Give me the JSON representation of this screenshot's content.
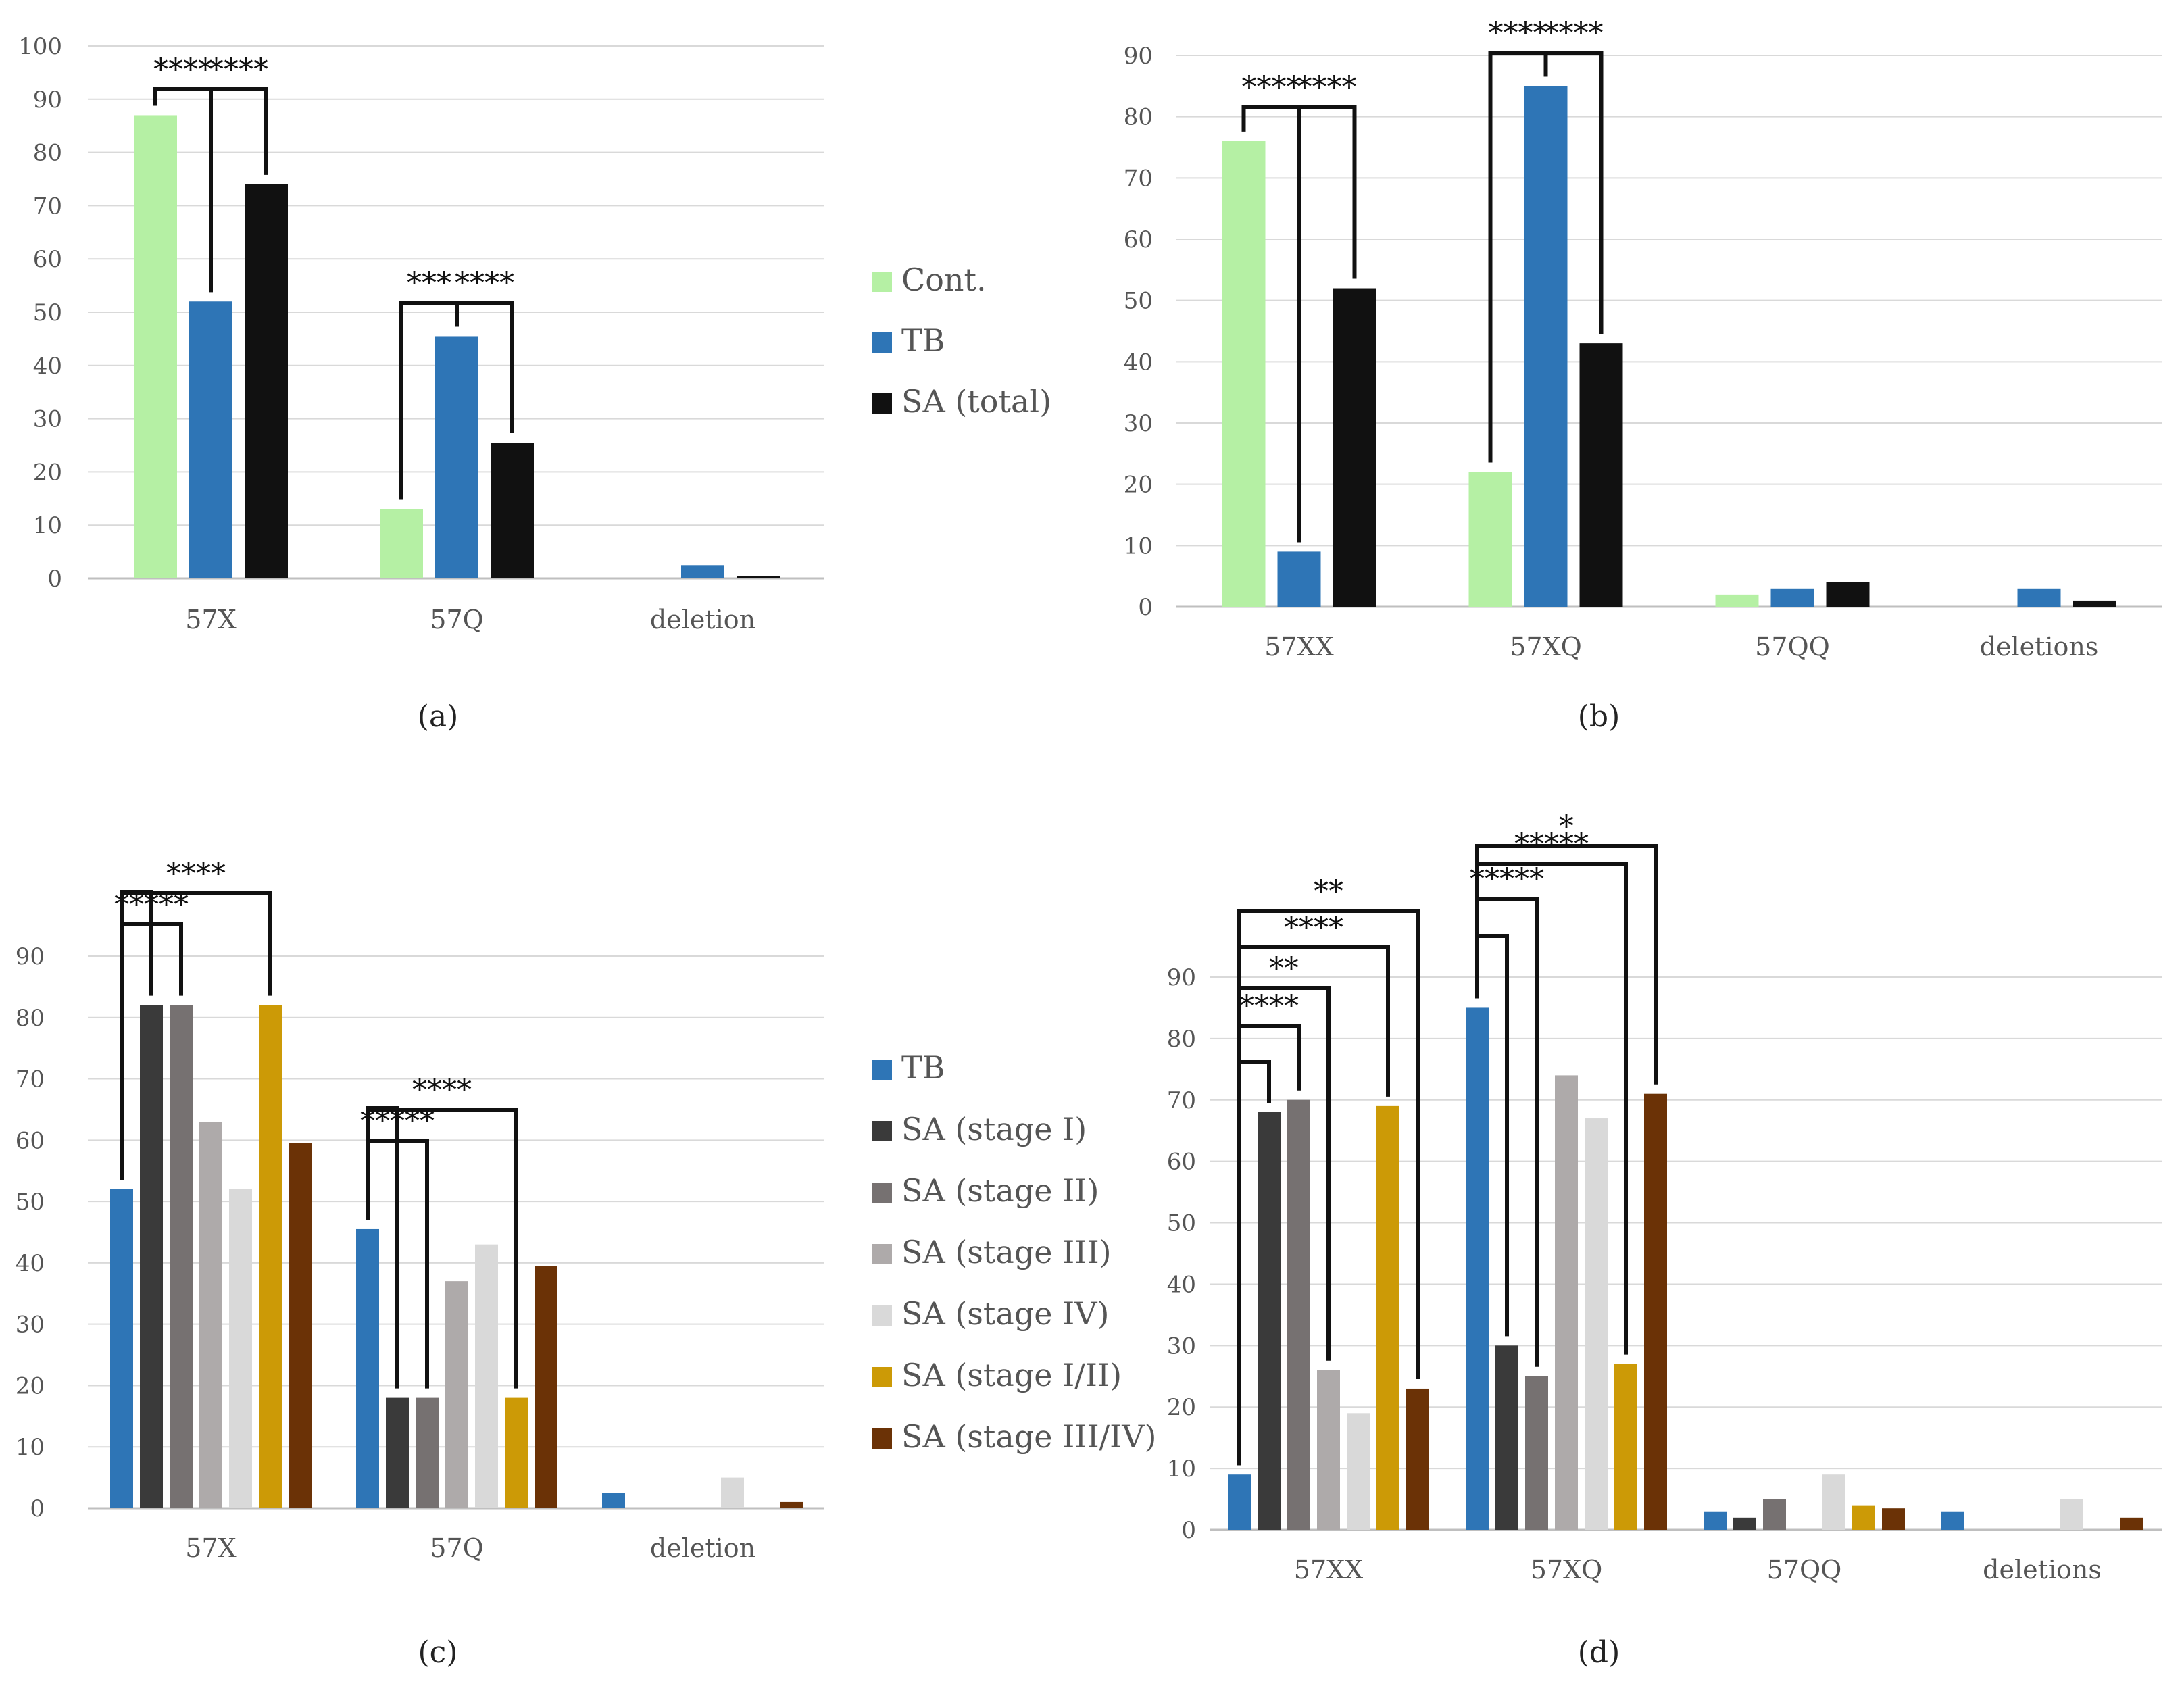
{
  "chart_data": [
    {
      "panel": "(a)",
      "type": "bar",
      "categories": [
        "57X",
        "57Q",
        "deletion"
      ],
      "ylim": [
        0,
        100
      ],
      "yticks": [
        0,
        10,
        20,
        30,
        40,
        50,
        60,
        70,
        80,
        90,
        100
      ],
      "series": [
        {
          "name": "Cont.",
          "color": "#b5f0a4",
          "values": [
            87,
            13,
            0
          ]
        },
        {
          "name": "TB",
          "color": "#2e75b6",
          "values": [
            52,
            45.5,
            2.5
          ]
        },
        {
          "name": "SA (total)",
          "color": "#111111",
          "values": [
            74,
            25.5,
            0.5
          ]
        }
      ],
      "significance": [
        {
          "category": 0,
          "from": 0,
          "to": 1,
          "label": "****"
        },
        {
          "category": 0,
          "from": 1,
          "to": 2,
          "label": "****"
        },
        {
          "category": 1,
          "from": 0,
          "to": 1,
          "label": "***"
        },
        {
          "category": 1,
          "from": 1,
          "to": 2,
          "label": "****"
        }
      ]
    },
    {
      "panel": "(b)",
      "type": "bar",
      "categories": [
        "57XX",
        "57XQ",
        "57QQ",
        "deletions"
      ],
      "ylim": [
        0,
        90
      ],
      "yticks": [
        0,
        10,
        20,
        30,
        40,
        50,
        60,
        70,
        80,
        90
      ],
      "series": [
        {
          "name": "Cont.",
          "color": "#b5f0a4",
          "values": [
            76,
            22,
            2,
            0
          ]
        },
        {
          "name": "TB",
          "color": "#2e75b6",
          "values": [
            9,
            85,
            3,
            3
          ]
        },
        {
          "name": "SA (total)",
          "color": "#111111",
          "values": [
            52,
            43,
            4,
            1
          ]
        }
      ],
      "significance": [
        {
          "category": 0,
          "from": 0,
          "to": 1,
          "label": "****"
        },
        {
          "category": 0,
          "from": 1,
          "to": 2,
          "label": "****"
        },
        {
          "category": 1,
          "from": 0,
          "to": 1,
          "label": "****"
        },
        {
          "category": 1,
          "from": 1,
          "to": 2,
          "label": "****"
        }
      ]
    },
    {
      "panel": "(c)",
      "type": "bar",
      "categories": [
        "57X",
        "57Q",
        "deletion"
      ],
      "ylim": [
        0,
        90
      ],
      "yticks": [
        0,
        10,
        20,
        30,
        40,
        50,
        60,
        70,
        80,
        90
      ],
      "series": [
        {
          "name": "TB",
          "color": "#2e75b6",
          "values": [
            52,
            45.5,
            2.5
          ]
        },
        {
          "name": "SA (stage I)",
          "color": "#3a3a3a",
          "values": [
            82,
            18,
            0
          ]
        },
        {
          "name": "SA (stage II)",
          "color": "#767171",
          "values": [
            82,
            18,
            0
          ]
        },
        {
          "name": "SA (stage III)",
          "color": "#aeaaaa",
          "values": [
            63,
            37,
            0
          ]
        },
        {
          "name": "SA (stage IV)",
          "color": "#d9d9d9",
          "values": [
            52,
            43,
            5
          ]
        },
        {
          "name": "SA (stage I/II)",
          "color": "#cc9a06",
          "values": [
            82,
            18,
            0
          ]
        },
        {
          "name": "SA (stage III/IV)",
          "color": "#6b3206",
          "values": [
            59.5,
            39.5,
            1
          ]
        }
      ],
      "significance": [
        {
          "category": 0,
          "from": 0,
          "to": 1,
          "label": ""
        },
        {
          "category": 0,
          "from": 0,
          "to": 2,
          "label": "*****"
        },
        {
          "category": 0,
          "from": 0,
          "to": 5,
          "label": "****"
        },
        {
          "category": 1,
          "from": 0,
          "to": 1,
          "label": ""
        },
        {
          "category": 1,
          "from": 0,
          "to": 2,
          "label": "*****"
        },
        {
          "category": 1,
          "from": 0,
          "to": 5,
          "label": "****"
        }
      ]
    },
    {
      "panel": "(d)",
      "type": "bar",
      "categories": [
        "57XX",
        "57XQ",
        "57QQ",
        "deletions"
      ],
      "ylim": [
        0,
        90
      ],
      "yticks": [
        0,
        10,
        20,
        30,
        40,
        50,
        60,
        70,
        80,
        90
      ],
      "series": [
        {
          "name": "TB",
          "color": "#2e75b6",
          "values": [
            9,
            85,
            3,
            3
          ]
        },
        {
          "name": "SA (stage I)",
          "color": "#3a3a3a",
          "values": [
            68,
            30,
            2,
            0
          ]
        },
        {
          "name": "SA (stage II)",
          "color": "#767171",
          "values": [
            70,
            25,
            5,
            0
          ]
        },
        {
          "name": "SA (stage III)",
          "color": "#aeaaaa",
          "values": [
            26,
            74,
            0,
            0
          ]
        },
        {
          "name": "SA (stage IV)",
          "color": "#d9d9d9",
          "values": [
            19,
            67,
            9,
            5
          ]
        },
        {
          "name": "SA (stage I/II)",
          "color": "#cc9a06",
          "values": [
            69,
            27,
            4,
            0
          ]
        },
        {
          "name": "SA (stage III/IV)",
          "color": "#6b3206",
          "values": [
            23,
            71,
            3.5,
            2
          ]
        }
      ],
      "significance": [
        {
          "category": 0,
          "from": 0,
          "to": 1,
          "label": ""
        },
        {
          "category": 0,
          "from": 0,
          "to": 2,
          "label": "****"
        },
        {
          "category": 0,
          "from": 0,
          "to": 3,
          "label": "**"
        },
        {
          "category": 0,
          "from": 0,
          "to": 5,
          "label": "****"
        },
        {
          "category": 0,
          "from": 0,
          "to": 6,
          "label": "**"
        },
        {
          "category": 1,
          "from": 0,
          "to": 1,
          "label": ""
        },
        {
          "category": 1,
          "from": 0,
          "to": 2,
          "label": "*****"
        },
        {
          "category": 1,
          "from": 0,
          "to": 5,
          "label": "*****"
        },
        {
          "category": 1,
          "from": 0,
          "to": 6,
          "label": "*"
        }
      ]
    }
  ],
  "legends": {
    "top": [
      {
        "label": "Cont.",
        "color": "#b5f0a4"
      },
      {
        "label": "TB",
        "color": "#2e75b6"
      },
      {
        "label": "SA (total)",
        "color": "#111111"
      }
    ],
    "bottom": [
      {
        "label": "TB",
        "color": "#2e75b6"
      },
      {
        "label": "SA (stage I)",
        "color": "#3a3a3a"
      },
      {
        "label": "SA (stage II)",
        "color": "#767171"
      },
      {
        "label": "SA (stage III)",
        "color": "#aeaaaa"
      },
      {
        "label": "SA (stage IV)",
        "color": "#d9d9d9"
      },
      {
        "label": "SA (stage I/II)",
        "color": "#cc9a06"
      },
      {
        "label": "SA (stage III/IV)",
        "color": "#6b3206"
      }
    ]
  }
}
